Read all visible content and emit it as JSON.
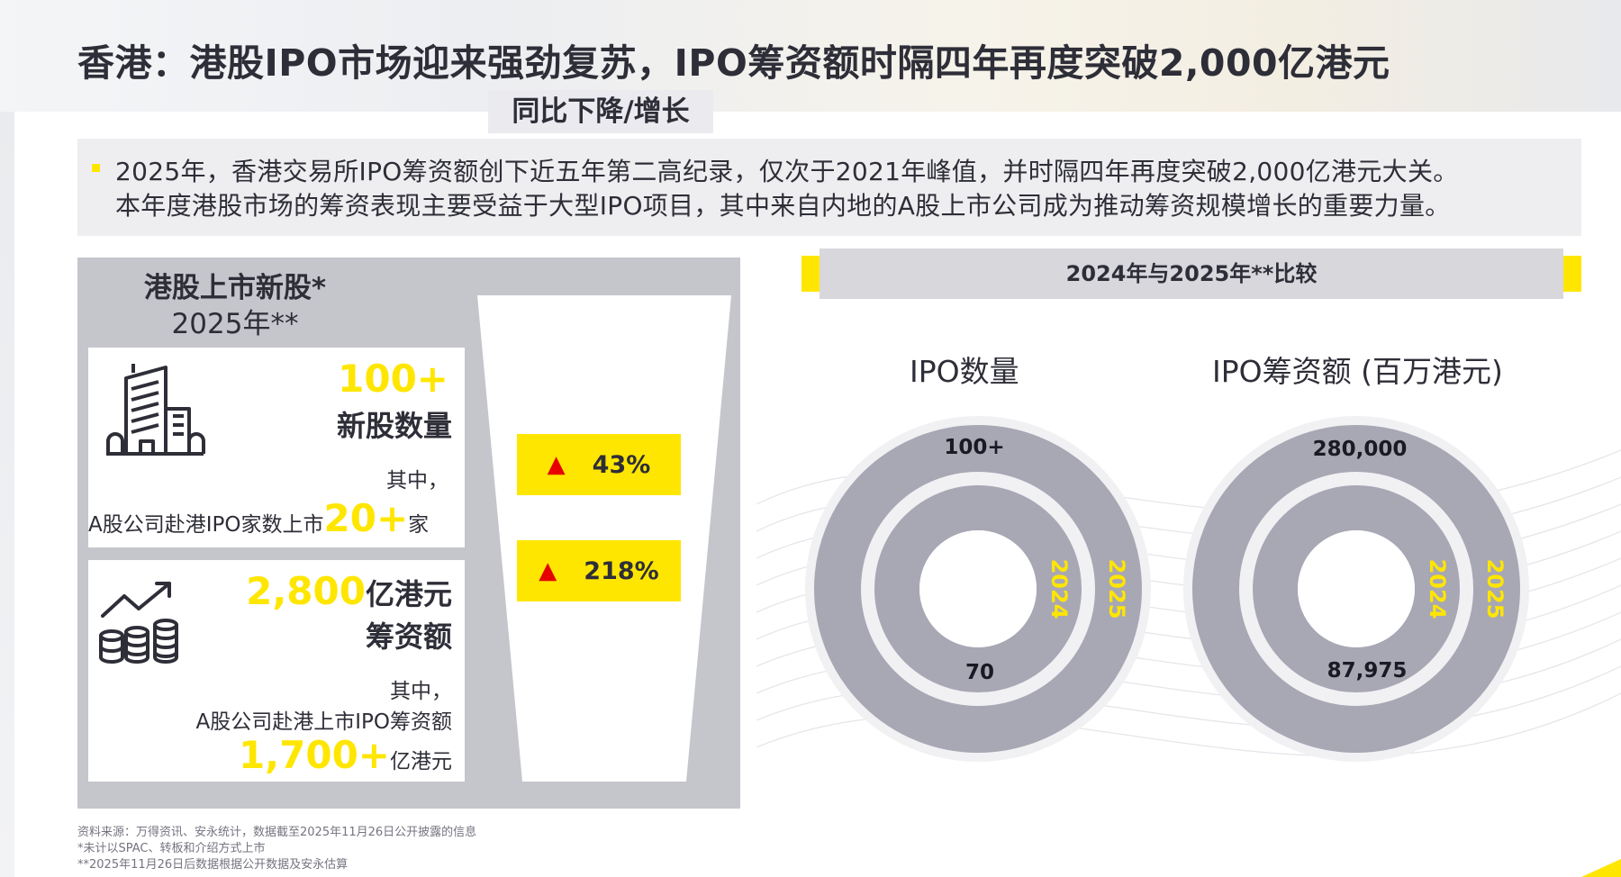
{
  "page": {
    "title": "香港：港股IPO市场迎来强劲复苏，IPO筹资额时隔四年再度突破2,000亿港元"
  },
  "summary": {
    "line1": "2025年，香港交易所IPO筹资额创下近五年第二高纪录，仅次于2021年峰值，并时隔四年再度突破2,000亿港元大关。",
    "line2": "本年度港股市场的筹资表现主要受益于大型IPO项目，其中来自内地的A股上市公司成为推动筹资规模增长的重要力量。"
  },
  "left_panel": {
    "title": "港股上市新股*",
    "subtitle": "2025年**",
    "card1": {
      "value": "100+",
      "label": "新股数量",
      "sub_label": "其中，",
      "a_share_text": "A股公司赴港IPO家数上市",
      "a_share_value": "20+",
      "a_share_unit": "家"
    },
    "card2": {
      "value": "2,800",
      "value_unit": "亿港元",
      "label": "筹资额",
      "sub_label": "其中，",
      "a_share_text": "A股公司赴港上市IPO筹资额",
      "a_share_value": "1,700+",
      "a_share_unit": "亿港元"
    }
  },
  "yoy": {
    "title": "同比下降/增长",
    "items": [
      {
        "direction": "up",
        "value": "43%"
      },
      {
        "direction": "up",
        "value": "218%"
      }
    ]
  },
  "comparison": {
    "header": "2024年与2025年**比较",
    "ipo_count": {
      "title": "IPO数量",
      "outer_value": "100+",
      "inner_value": "70",
      "outer_year": "2025",
      "inner_year": "2024"
    },
    "ipo_funds": {
      "title": "IPO筹资额 (百万港元)",
      "outer_value": "280,000",
      "inner_value": "87,975",
      "outer_year": "2025",
      "inner_year": "2024"
    }
  },
  "footnotes": {
    "source": "资料来源：万得资讯、安永统计，数据截至2025年11月26日公开披露的信息",
    "note1": "*未计以SPAC、转板和介绍方式上市",
    "note2": "**2025年11月26日后数据根据公开数据及安永估算"
  },
  "colors": {
    "ey_yellow": "#ffe600",
    "dark": "#2e2e38",
    "ring_grey": "#a8a7b4",
    "panel_grey": "#c5c5cc",
    "arrow_red": "#e60000"
  },
  "icons": [
    "building-icon",
    "growth-coins-icon",
    "triangle-up-icon"
  ]
}
